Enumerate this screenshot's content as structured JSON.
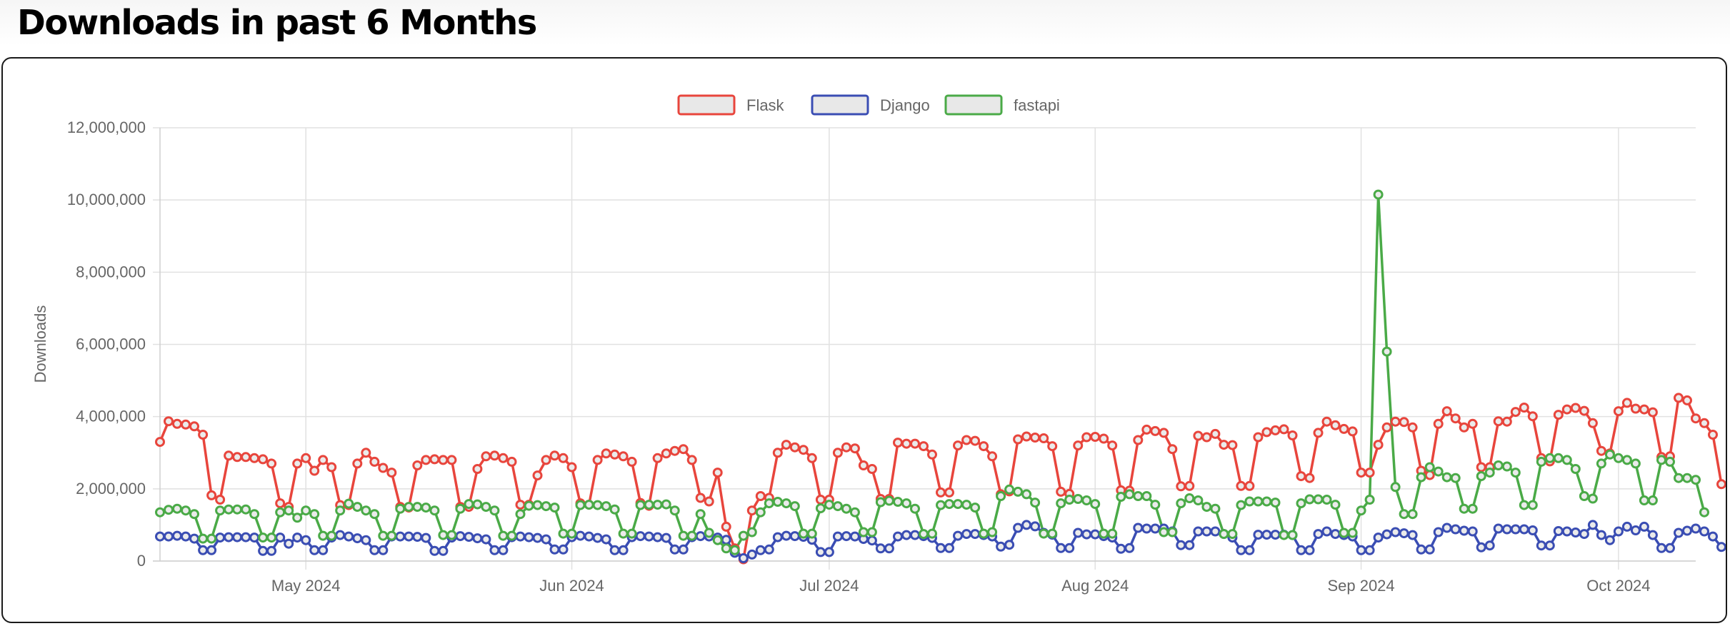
{
  "page": {
    "title": "Downloads in past 6 Months"
  },
  "chart_data": {
    "type": "line",
    "title": "",
    "xlabel": "",
    "ylabel": "Downloads",
    "ylim": [
      0,
      12000000
    ],
    "y_ticks": [
      0,
      2000000,
      4000000,
      6000000,
      8000000,
      10000000,
      12000000
    ],
    "y_tick_labels": [
      "0",
      "2,000,000",
      "4,000,000",
      "6,000,000",
      "8,000,000",
      "10,000,000",
      "12,000,000"
    ],
    "x_start": "2024-04-14",
    "x_range": [
      "2024-04-14",
      "2024-10-10"
    ],
    "x_ticks": [
      {
        "date": "2024-05-01",
        "label": "May 2024"
      },
      {
        "date": "2024-06-01",
        "label": "Jun 2024"
      },
      {
        "date": "2024-07-01",
        "label": "Jul 2024"
      },
      {
        "date": "2024-08-01",
        "label": "Aug 2024"
      },
      {
        "date": "2024-09-01",
        "label": "Sep 2024"
      },
      {
        "date": "2024-10-01",
        "label": "Oct 2024"
      }
    ],
    "grid": true,
    "legend_position": "top",
    "series": [
      {
        "name": "Flask",
        "color": "#e8453c",
        "values": [
          3300000,
          3870000,
          3800000,
          3780000,
          3730000,
          3500000,
          1820000,
          1700000,
          2920000,
          2880000,
          2880000,
          2850000,
          2820000,
          2700000,
          1600000,
          1500000,
          2700000,
          2850000,
          2500000,
          2800000,
          2600000,
          1550000,
          1550000,
          2700000,
          3000000,
          2750000,
          2580000,
          2450000,
          1500000,
          1480000,
          2650000,
          2800000,
          2820000,
          2800000,
          2800000,
          1500000,
          1500000,
          2550000,
          2900000,
          2920000,
          2850000,
          2750000,
          1560000,
          1560000,
          2370000,
          2800000,
          2920000,
          2850000,
          2600000,
          1600000,
          1560000,
          2800000,
          2980000,
          2950000,
          2900000,
          2750000,
          1610000,
          1530000,
          2850000,
          2980000,
          3050000,
          3100000,
          2800000,
          1750000,
          1650000,
          2450000,
          950000,
          350000,
          50000,
          1400000,
          1800000,
          1750000,
          3000000,
          3220000,
          3150000,
          3080000,
          2850000,
          1700000,
          1700000,
          3000000,
          3150000,
          3120000,
          2650000,
          2550000,
          1720000,
          1720000,
          3280000,
          3250000,
          3250000,
          3180000,
          2950000,
          1900000,
          1900000,
          3200000,
          3350000,
          3330000,
          3180000,
          2900000,
          1850000,
          1930000,
          3370000,
          3450000,
          3420000,
          3400000,
          3180000,
          1920000,
          1860000,
          3200000,
          3430000,
          3440000,
          3390000,
          3200000,
          1960000,
          1950000,
          3350000,
          3640000,
          3600000,
          3550000,
          3100000,
          2070000,
          2080000,
          3470000,
          3430000,
          3520000,
          3220000,
          3210000,
          2080000,
          2080000,
          3430000,
          3570000,
          3620000,
          3650000,
          3480000,
          2350000,
          2300000,
          3550000,
          3860000,
          3760000,
          3660000,
          3590000,
          2450000,
          2450000,
          3220000,
          3700000,
          3860000,
          3850000,
          3700000,
          2500000,
          2380000,
          3800000,
          4150000,
          3950000,
          3700000,
          3800000,
          2600000,
          2600000,
          3870000,
          3860000,
          4130000,
          4250000,
          4010000,
          2850000,
          2760000,
          4050000,
          4200000,
          4240000,
          4160000,
          3820000,
          3050000,
          2980000,
          4150000,
          4380000,
          4220000,
          4200000,
          4120000,
          2880000,
          2900000,
          4520000,
          4450000,
          3950000,
          3820000,
          3500000,
          2130000
        ]
      },
      {
        "name": "Django",
        "color": "#3a4db3",
        "values": [
          680000,
          680000,
          700000,
          680000,
          620000,
          300000,
          300000,
          650000,
          660000,
          660000,
          660000,
          650000,
          280000,
          280000,
          650000,
          480000,
          650000,
          580000,
          300000,
          300000,
          650000,
          720000,
          680000,
          630000,
          580000,
          300000,
          300000,
          680000,
          680000,
          680000,
          670000,
          640000,
          280000,
          280000,
          650000,
          690000,
          670000,
          630000,
          600000,
          300000,
          300000,
          660000,
          680000,
          660000,
          640000,
          600000,
          320000,
          320000,
          660000,
          700000,
          680000,
          640000,
          600000,
          300000,
          300000,
          660000,
          690000,
          680000,
          660000,
          640000,
          320000,
          320000,
          660000,
          690000,
          680000,
          650000,
          590000,
          230000,
          80000,
          180000,
          300000,
          320000,
          660000,
          700000,
          690000,
          670000,
          590000,
          250000,
          250000,
          680000,
          690000,
          680000,
          610000,
          570000,
          350000,
          350000,
          680000,
          720000,
          720000,
          690000,
          640000,
          360000,
          360000,
          700000,
          750000,
          750000,
          720000,
          680000,
          400000,
          450000,
          920000,
          1000000,
          960000,
          780000,
          730000,
          360000,
          360000,
          780000,
          740000,
          740000,
          690000,
          650000,
          340000,
          360000,
          920000,
          900000,
          900000,
          900000,
          820000,
          440000,
          440000,
          820000,
          820000,
          820000,
          750000,
          650000,
          300000,
          300000,
          730000,
          730000,
          730000,
          730000,
          720000,
          300000,
          300000,
          750000,
          820000,
          750000,
          720000,
          680000,
          300000,
          300000,
          650000,
          740000,
          800000,
          770000,
          720000,
          320000,
          320000,
          800000,
          920000,
          880000,
          840000,
          820000,
          380000,
          430000,
          900000,
          880000,
          880000,
          880000,
          850000,
          430000,
          430000,
          830000,
          820000,
          790000,
          750000,
          1000000,
          720000,
          580000,
          820000,
          950000,
          850000,
          950000,
          720000,
          360000,
          360000,
          780000,
          840000,
          900000,
          820000,
          680000,
          390000
        ]
      },
      {
        "name": "fastapi",
        "color": "#4aaa47",
        "values": [
          1350000,
          1420000,
          1450000,
          1400000,
          1300000,
          620000,
          620000,
          1400000,
          1430000,
          1430000,
          1430000,
          1300000,
          650000,
          650000,
          1350000,
          1400000,
          1200000,
          1400000,
          1300000,
          700000,
          700000,
          1400000,
          1590000,
          1500000,
          1400000,
          1300000,
          700000,
          700000,
          1450000,
          1500000,
          1500000,
          1480000,
          1400000,
          720000,
          720000,
          1450000,
          1580000,
          1570000,
          1500000,
          1400000,
          700000,
          700000,
          1300000,
          1530000,
          1550000,
          1520000,
          1480000,
          760000,
          760000,
          1550000,
          1560000,
          1550000,
          1520000,
          1430000,
          760000,
          760000,
          1550000,
          1560000,
          1560000,
          1570000,
          1400000,
          700000,
          700000,
          1300000,
          780000,
          580000,
          350000,
          300000,
          700000,
          800000,
          1350000,
          1600000,
          1640000,
          1600000,
          1520000,
          760000,
          760000,
          1460000,
          1560000,
          1520000,
          1450000,
          1350000,
          800000,
          800000,
          1630000,
          1670000,
          1640000,
          1600000,
          1450000,
          750000,
          760000,
          1550000,
          1580000,
          1580000,
          1560000,
          1480000,
          760000,
          800000,
          1800000,
          1980000,
          1920000,
          1850000,
          1620000,
          760000,
          760000,
          1600000,
          1700000,
          1720000,
          1680000,
          1580000,
          760000,
          760000,
          1780000,
          1850000,
          1800000,
          1800000,
          1560000,
          800000,
          800000,
          1600000,
          1740000,
          1680000,
          1500000,
          1450000,
          750000,
          750000,
          1550000,
          1650000,
          1650000,
          1650000,
          1620000,
          720000,
          720000,
          1600000,
          1710000,
          1710000,
          1700000,
          1560000,
          780000,
          780000,
          1400000,
          1700000,
          10150000,
          5800000,
          2050000,
          1300000,
          1300000,
          2320000,
          2600000,
          2480000,
          2320000,
          2300000,
          1450000,
          1450000,
          2350000,
          2450000,
          2650000,
          2620000,
          2450000,
          1550000,
          1550000,
          2750000,
          2850000,
          2850000,
          2800000,
          2550000,
          1800000,
          1730000,
          2700000,
          2950000,
          2850000,
          2800000,
          2700000,
          1680000,
          1680000,
          2800000,
          2750000,
          2300000,
          2300000,
          2250000,
          1350000
        ]
      }
    ]
  }
}
